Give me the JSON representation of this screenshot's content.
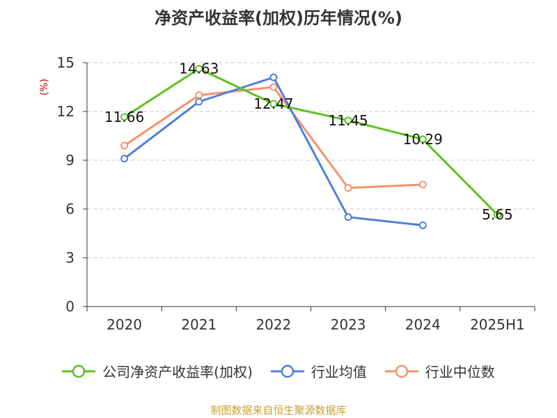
{
  "page": {
    "title": "净资产收益率(加权)历年情况(%)",
    "source": "制图数据来自恒生聚源数据库",
    "source_color": "#c8a032"
  },
  "legend": {
    "items": [
      {
        "label": "公司净资产收益率(加权)",
        "color": "#5bc220"
      },
      {
        "label": "行业均值",
        "color": "#4f7fd8"
      },
      {
        "label": "行业中位数",
        "color": "#f5926a"
      }
    ]
  },
  "chart_data": {
    "type": "line",
    "title": "净资产收益率(加权)历年情况(%)",
    "ylabel": "(%)",
    "ylabel_color": "#cc0000",
    "categories": [
      "2020",
      "2021",
      "2022",
      "2023",
      "2024",
      "2025H1"
    ],
    "ylim": [
      0,
      15
    ],
    "yticks": [
      0,
      3,
      6,
      9,
      12,
      15
    ],
    "grid": true,
    "legend_position": "bottom",
    "series": [
      {
        "name": "公司净资产收益率(加权)",
        "color": "#5bc220",
        "values": [
          11.66,
          14.63,
          12.47,
          11.45,
          10.29,
          5.65
        ],
        "show_labels": true,
        "labels": [
          "11.66",
          "14.63",
          "12.47",
          "11.45",
          "10.29",
          "5.65"
        ]
      },
      {
        "name": "行业均值",
        "color": "#4f7fd8",
        "values": [
          9.1,
          12.6,
          14.1,
          5.5,
          5.0,
          null
        ],
        "show_labels": false
      },
      {
        "name": "行业中位数",
        "color": "#f5926a",
        "values": [
          9.9,
          13.0,
          13.5,
          7.3,
          7.5,
          null
        ],
        "show_labels": false
      }
    ]
  }
}
